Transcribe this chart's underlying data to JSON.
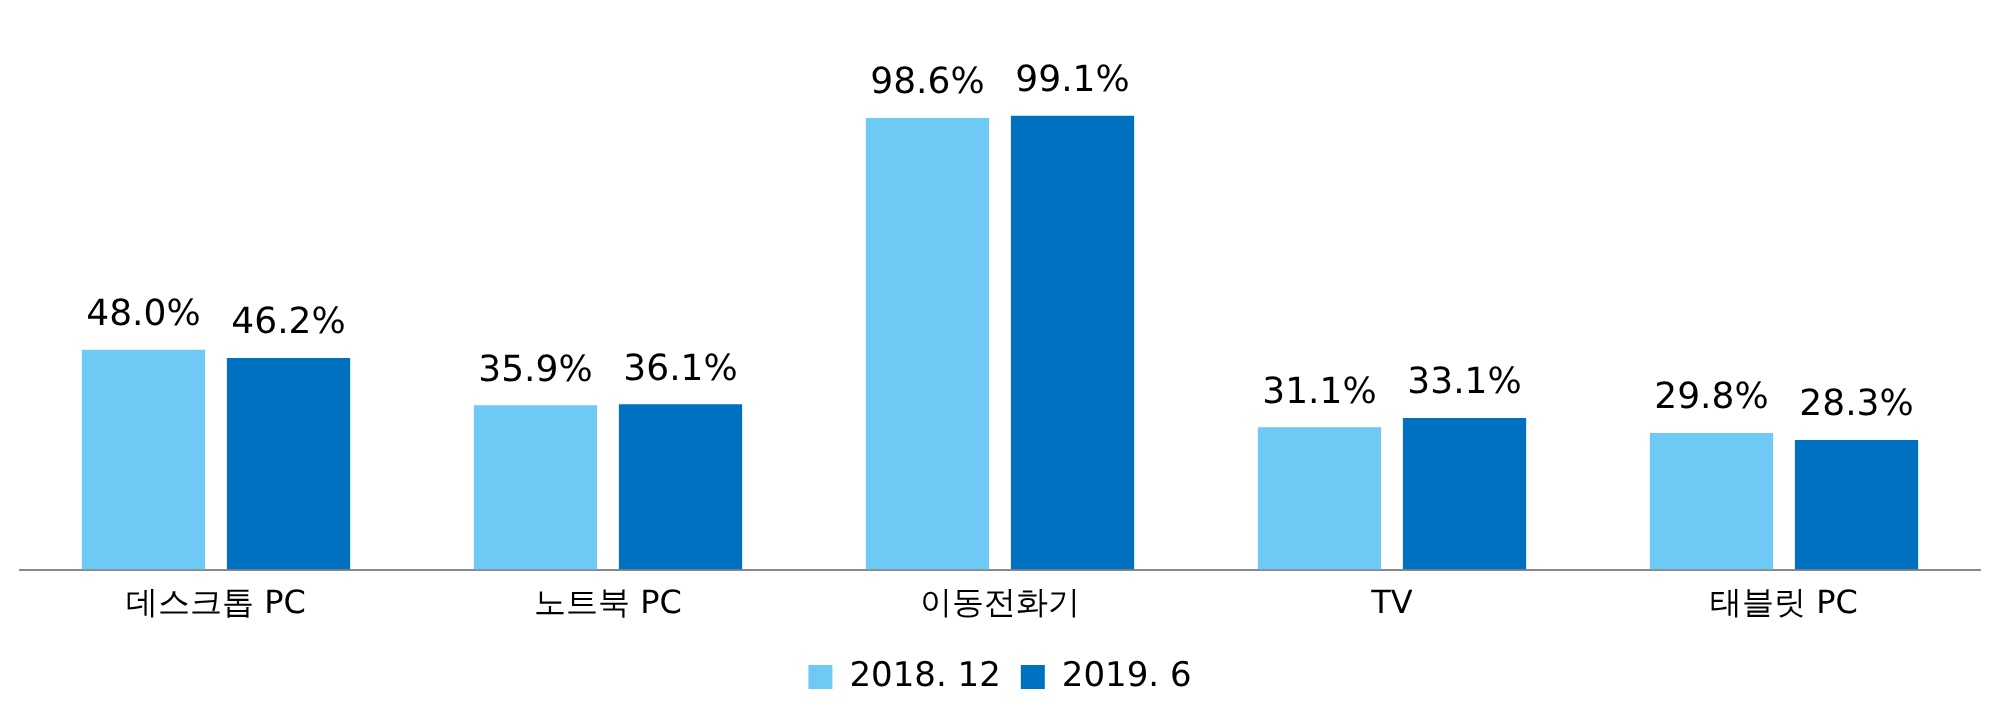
{
  "chart_data": {
    "type": "bar",
    "categories": [
      "데스크톱 PC",
      "노트북 PC",
      "이동전화기",
      "TV",
      "태블릿 PC"
    ],
    "series": [
      {
        "name": "2018. 12",
        "color": "#6ec9f5",
        "values": [
          48.0,
          35.9,
          98.6,
          31.1,
          29.8
        ],
        "value_labels": [
          "48.0%",
          "35.9%",
          "98.6%",
          "31.1%",
          "29.8%"
        ]
      },
      {
        "name": "2019. 6",
        "color": "#0070c0",
        "values": [
          46.2,
          36.1,
          99.1,
          33.1,
          28.3
        ],
        "value_labels": [
          "46.2%",
          "36.1%",
          "99.1%",
          "33.1%",
          "28.3%"
        ]
      }
    ],
    "legend": "bottom",
    "grid": false
  }
}
